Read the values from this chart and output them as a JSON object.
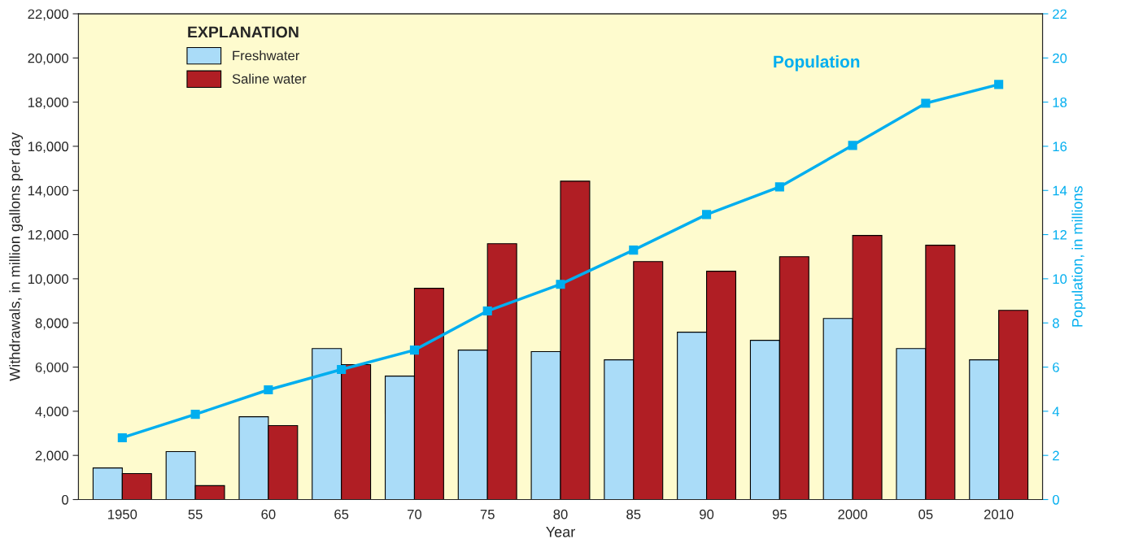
{
  "chart_data": {
    "type": "bar",
    "xlabel": "Year",
    "ylabel": "Withdrawals, in million gallons per day",
    "y2label": "Population, in millions",
    "legend_title": "EXPLANATION",
    "legend": "top left",
    "grid": false,
    "categories": [
      "1950",
      "55",
      "60",
      "65",
      "70",
      "75",
      "80",
      "85",
      "90",
      "95",
      "2000",
      "05",
      "2010"
    ],
    "ylim": [
      0,
      22000
    ],
    "yticks": [
      0,
      {
        "value": 2000,
        "label": "2,000"
      },
      {
        "value": 4000,
        "label": "4,000"
      },
      {
        "value": 6000,
        "label": "6,000"
      },
      {
        "value": 8000,
        "label": "8,000"
      },
      {
        "value": 10000,
        "label": "10,000"
      },
      {
        "value": 12000,
        "label": "12,000"
      },
      {
        "value": 14000,
        "label": "14,000"
      },
      {
        "value": 16000,
        "label": "16,000"
      },
      {
        "value": 18000,
        "label": "18,000"
      },
      {
        "value": 20000,
        "label": "20,000"
      },
      {
        "value": 22000,
        "label": "22,000"
      }
    ],
    "y2lim": [
      0,
      22
    ],
    "y2ticks": [
      0,
      2,
      4,
      6,
      8,
      10,
      12,
      14,
      16,
      18,
      20,
      22
    ],
    "series": [
      {
        "name": "Freshwater",
        "color": "#aadcf8",
        "values": [
          1430,
          2170,
          3750,
          6840,
          5590,
          6770,
          6700,
          6330,
          7580,
          7210,
          8200,
          6840,
          6330
        ]
      },
      {
        "name": "Saline water",
        "color": "#b01e24",
        "values": [
          1180,
          630,
          3350,
          6110,
          9570,
          11590,
          14420,
          10780,
          10340,
          11000,
          11960,
          11520,
          8570
        ]
      },
      {
        "name": "Population",
        "type": "line",
        "axis": "y2",
        "color": "#00aeef",
        "marker": "square",
        "values": [
          2.8,
          3.86,
          4.97,
          5.89,
          6.77,
          8.54,
          9.75,
          11.3,
          12.91,
          14.16,
          16.04,
          17.95,
          18.8
        ]
      }
    ]
  }
}
